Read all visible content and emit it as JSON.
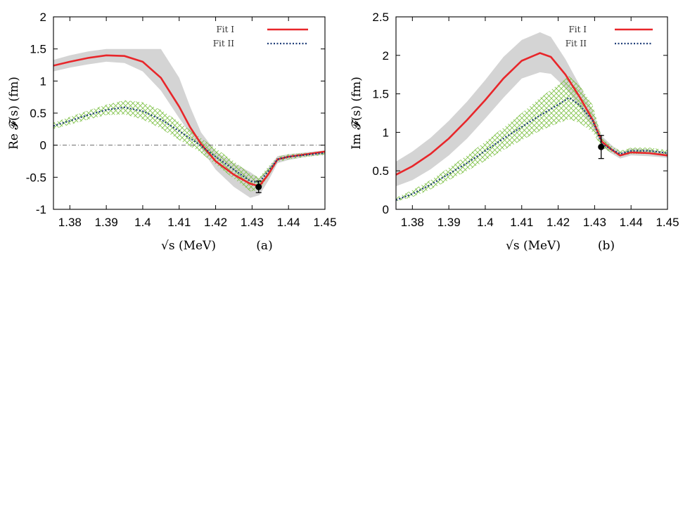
{
  "chart_data": [
    {
      "type": "line",
      "panel_label": "(a)",
      "xlabel": "√s (MeV)",
      "ylabel": "Re 𝓕(s) (fm)",
      "xlim": [
        1.3755,
        1.45
      ],
      "ylim": [
        -1,
        2
      ],
      "xticks": [
        1.38,
        1.39,
        1.4,
        1.41,
        1.42,
        1.43,
        1.44,
        1.45
      ],
      "xtick_labels": [
        "1.38",
        "1.39",
        "1.4",
        "1.41",
        "1.42",
        "1.43",
        "1.44",
        "1.45"
      ],
      "yticks": [
        -1,
        -0.5,
        0,
        0.5,
        1,
        1.5,
        2
      ],
      "ytick_labels": [
        "-1",
        "-0.5",
        "0",
        "0.5",
        "1",
        "1.5",
        "2"
      ],
      "zero_line": true,
      "legend": [
        "Fit I",
        "Fit II"
      ],
      "series": [
        {
          "name": "Fit I",
          "color": "#e8262a",
          "style": "solid",
          "x": [
            1.3755,
            1.38,
            1.385,
            1.39,
            1.395,
            1.4,
            1.405,
            1.41,
            1.413,
            1.416,
            1.42,
            1.425,
            1.4295,
            1.432,
            1.4345,
            1.437,
            1.44,
            1.445,
            1.45
          ],
          "y": [
            1.24,
            1.3,
            1.36,
            1.4,
            1.39,
            1.3,
            1.05,
            0.6,
            0.28,
            0.02,
            -0.25,
            -0.46,
            -0.6,
            -0.64,
            -0.45,
            -0.22,
            -0.18,
            -0.14,
            -0.1
          ],
          "band_color": "#d4d4d4",
          "band_lower": [
            1.15,
            1.21,
            1.26,
            1.3,
            1.28,
            1.15,
            0.85,
            0.42,
            0.18,
            -0.05,
            -0.38,
            -0.65,
            -0.82,
            -0.78,
            -0.55,
            -0.28,
            -0.23,
            -0.18,
            -0.15
          ],
          "band_upper": [
            1.33,
            1.4,
            1.46,
            1.5,
            1.5,
            1.5,
            1.5,
            1.05,
            0.6,
            0.2,
            -0.1,
            -0.28,
            -0.42,
            -0.52,
            -0.35,
            -0.17,
            -0.14,
            -0.11,
            -0.08
          ]
        },
        {
          "name": "Fit II",
          "color": "#1f3e78",
          "style": "dotted",
          "x": [
            1.3755,
            1.38,
            1.385,
            1.39,
            1.395,
            1.4,
            1.405,
            1.41,
            1.415,
            1.42,
            1.425,
            1.4295,
            1.432,
            1.4345,
            1.437,
            1.44,
            1.445,
            1.45
          ],
          "y": [
            0.3,
            0.38,
            0.47,
            0.55,
            0.59,
            0.53,
            0.4,
            0.22,
            0.03,
            -0.18,
            -0.38,
            -0.56,
            -0.58,
            -0.4,
            -0.22,
            -0.18,
            -0.15,
            -0.12
          ],
          "band_color": "#7cc043",
          "band_lower": [
            0.25,
            0.32,
            0.4,
            0.47,
            0.48,
            0.4,
            0.26,
            0.08,
            -0.08,
            -0.3,
            -0.52,
            -0.72,
            -0.7,
            -0.48,
            -0.26,
            -0.22,
            -0.18,
            -0.15
          ],
          "band_upper": [
            0.35,
            0.44,
            0.54,
            0.63,
            0.7,
            0.67,
            0.55,
            0.36,
            0.15,
            -0.05,
            -0.25,
            -0.45,
            -0.5,
            -0.33,
            -0.18,
            -0.14,
            -0.12,
            -0.09
          ]
        }
      ],
      "data_point": {
        "x": 1.4318,
        "y": -0.65,
        "err_low": -0.74,
        "err_high": -0.56
      }
    },
    {
      "type": "line",
      "panel_label": "(b)",
      "xlabel": "√s (MeV)",
      "ylabel": "Im 𝓕(s) (fm)",
      "xlim": [
        1.3755,
        1.45
      ],
      "ylim": [
        0,
        2.5
      ],
      "xticks": [
        1.38,
        1.39,
        1.4,
        1.41,
        1.42,
        1.43,
        1.44,
        1.45
      ],
      "xtick_labels": [
        "1.38",
        "1.39",
        "1.4",
        "1.41",
        "1.42",
        "1.43",
        "1.44",
        "1.45"
      ],
      "yticks": [
        0,
        0.5,
        1,
        1.5,
        2,
        2.5
      ],
      "ytick_labels": [
        "0",
        "0.5",
        "1",
        "1.5",
        "2",
        "2.5"
      ],
      "zero_line": false,
      "legend": [
        "Fit I",
        "Fit II"
      ],
      "series": [
        {
          "name": "Fit I",
          "color": "#e8262a",
          "style": "solid",
          "x": [
            1.3755,
            1.38,
            1.385,
            1.39,
            1.395,
            1.4,
            1.405,
            1.41,
            1.415,
            1.418,
            1.422,
            1.426,
            1.4295,
            1.432,
            1.4345,
            1.437,
            1.44,
            1.445,
            1.45
          ],
          "y": [
            0.45,
            0.56,
            0.72,
            0.92,
            1.16,
            1.42,
            1.7,
            1.93,
            2.03,
            1.98,
            1.75,
            1.45,
            1.16,
            0.88,
            0.78,
            0.7,
            0.74,
            0.73,
            0.7
          ],
          "band_color": "#d4d4d4",
          "band_lower": [
            0.3,
            0.38,
            0.52,
            0.7,
            0.92,
            1.18,
            1.45,
            1.7,
            1.78,
            1.76,
            1.58,
            1.32,
            1.05,
            0.82,
            0.73,
            0.66,
            0.7,
            0.69,
            0.67
          ],
          "band_upper": [
            0.62,
            0.75,
            0.93,
            1.15,
            1.4,
            1.68,
            1.98,
            2.2,
            2.3,
            2.24,
            1.95,
            1.6,
            1.28,
            0.95,
            0.84,
            0.74,
            0.79,
            0.78,
            0.74
          ]
        },
        {
          "name": "Fit II",
          "color": "#1f3e78",
          "style": "dotted",
          "x": [
            1.3755,
            1.38,
            1.385,
            1.39,
            1.395,
            1.4,
            1.405,
            1.41,
            1.415,
            1.42,
            1.423,
            1.426,
            1.4295,
            1.432,
            1.4345,
            1.437,
            1.44,
            1.445,
            1.45
          ],
          "y": [
            0.12,
            0.2,
            0.32,
            0.46,
            0.6,
            0.76,
            0.92,
            1.07,
            1.22,
            1.36,
            1.45,
            1.35,
            1.15,
            0.85,
            0.78,
            0.72,
            0.76,
            0.76,
            0.73
          ],
          "band_color": "#7cc043",
          "band_lower": [
            0.1,
            0.16,
            0.26,
            0.38,
            0.5,
            0.63,
            0.77,
            0.9,
            1.02,
            1.12,
            1.17,
            1.12,
            1.0,
            0.8,
            0.74,
            0.69,
            0.72,
            0.72,
            0.69
          ],
          "band_upper": [
            0.15,
            0.25,
            0.38,
            0.54,
            0.7,
            0.88,
            1.06,
            1.25,
            1.45,
            1.62,
            1.73,
            1.6,
            1.35,
            0.92,
            0.83,
            0.76,
            0.8,
            0.8,
            0.77
          ]
        }
      ],
      "data_point": {
        "x": 1.4318,
        "y": 0.81,
        "err_low": 0.66,
        "err_high": 0.96
      }
    }
  ]
}
